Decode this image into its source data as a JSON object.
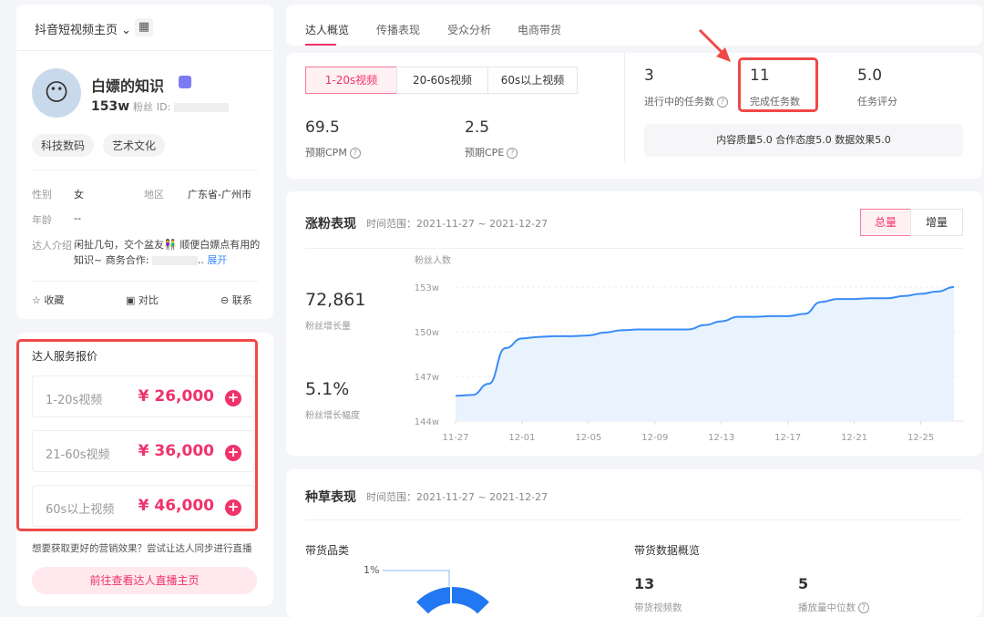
{
  "profile": {
    "platform_select": "抖音短视频主页",
    "name": "白嫖的知识",
    "followers": "153w",
    "followers_label": "粉丝",
    "id_label": "ID:",
    "tags": [
      "科技数码",
      "艺术文化"
    ],
    "gender_label": "性别",
    "gender": "女",
    "region_label": "地区",
    "region": "广东省-广州市",
    "age_label": "年龄",
    "age": "--",
    "intro_label": "达人介绍",
    "intro": "闲扯几句，交个盆友👫 顺便白嫖点有用的知识~ 商务合作:",
    "intro_tail": "..",
    "expand": "展开",
    "actions": [
      "收藏",
      "对比",
      "联系"
    ]
  },
  "pricing": {
    "title": "达人服务报价",
    "items": [
      {
        "label": "1-20s视频",
        "price": "¥ 26,000"
      },
      {
        "label": "21-60s视频",
        "price": "¥ 36,000"
      },
      {
        "label": "60s以上视频",
        "price": "¥ 46,000"
      }
    ],
    "hint": "想要获取更好的营销效果？尝试让达人同步进行直播",
    "live_button": "前往查看达人直播主页"
  },
  "tabs": [
    "达人概览",
    "传播表现",
    "受众分析",
    "电商带货"
  ],
  "overview": {
    "segments": [
      "1-20s视频",
      "20-60s视频",
      "60s以上视频"
    ],
    "cpm": "69.5",
    "cpm_label": "预期CPM",
    "cpe": "2.5",
    "cpe_label": "预期CPE",
    "tasks_ongoing": "3",
    "tasks_ongoing_label": "进行中的任务数",
    "tasks_done": "11",
    "tasks_done_label": "完成任务数",
    "task_score": "5.0",
    "task_score_label": "任务评分",
    "score_detail": "内容质量5.0 合作态度5.0 数据效果5.0"
  },
  "fans": {
    "title": "涨粉表现",
    "range": "时间范围：2021-11-27 ~ 2021-12-27",
    "toggle": [
      "总量",
      "增量"
    ],
    "growth": "72,861",
    "growth_label": "粉丝增长量",
    "rate": "5.1%",
    "rate_label": "粉丝增长幅度"
  },
  "chart_data": {
    "type": "area",
    "ylabel": "粉丝人数",
    "y_ticks": [
      "144w",
      "147w",
      "150w",
      "153w"
    ],
    "ylim": [
      144,
      153
    ],
    "y_unit": "w",
    "x_ticks": [
      "11-27",
      "12-01",
      "12-05",
      "12-09",
      "12-13",
      "12-17",
      "12-21",
      "12-25"
    ],
    "x_start": "11-27",
    "x_end": "12-27",
    "values": [
      145.7,
      145.75,
      146.5,
      148.9,
      149.55,
      149.65,
      149.7,
      149.7,
      149.75,
      149.95,
      150.1,
      150.15,
      150.15,
      150.15,
      150.15,
      150.45,
      150.7,
      151.0,
      151.0,
      151.05,
      151.05,
      151.2,
      152.0,
      152.2,
      152.2,
      152.25,
      152.25,
      152.4,
      152.55,
      152.7,
      153.0
    ],
    "grid": true,
    "color": "#3a8cf5"
  },
  "seeding": {
    "title": "种草表现",
    "range": "时间范围：2021-11-27 ~ 2021-12-27",
    "category_title": "带货品类",
    "donut_label": "1%",
    "overview_title": "带货数据概览",
    "videos": "13",
    "videos_label": "带货视频数",
    "median": "5",
    "median_label": "播放量中位数"
  },
  "colors": {
    "accent": "#f0326b",
    "annotation": "#f04848",
    "chart": "#3a8cf5"
  }
}
